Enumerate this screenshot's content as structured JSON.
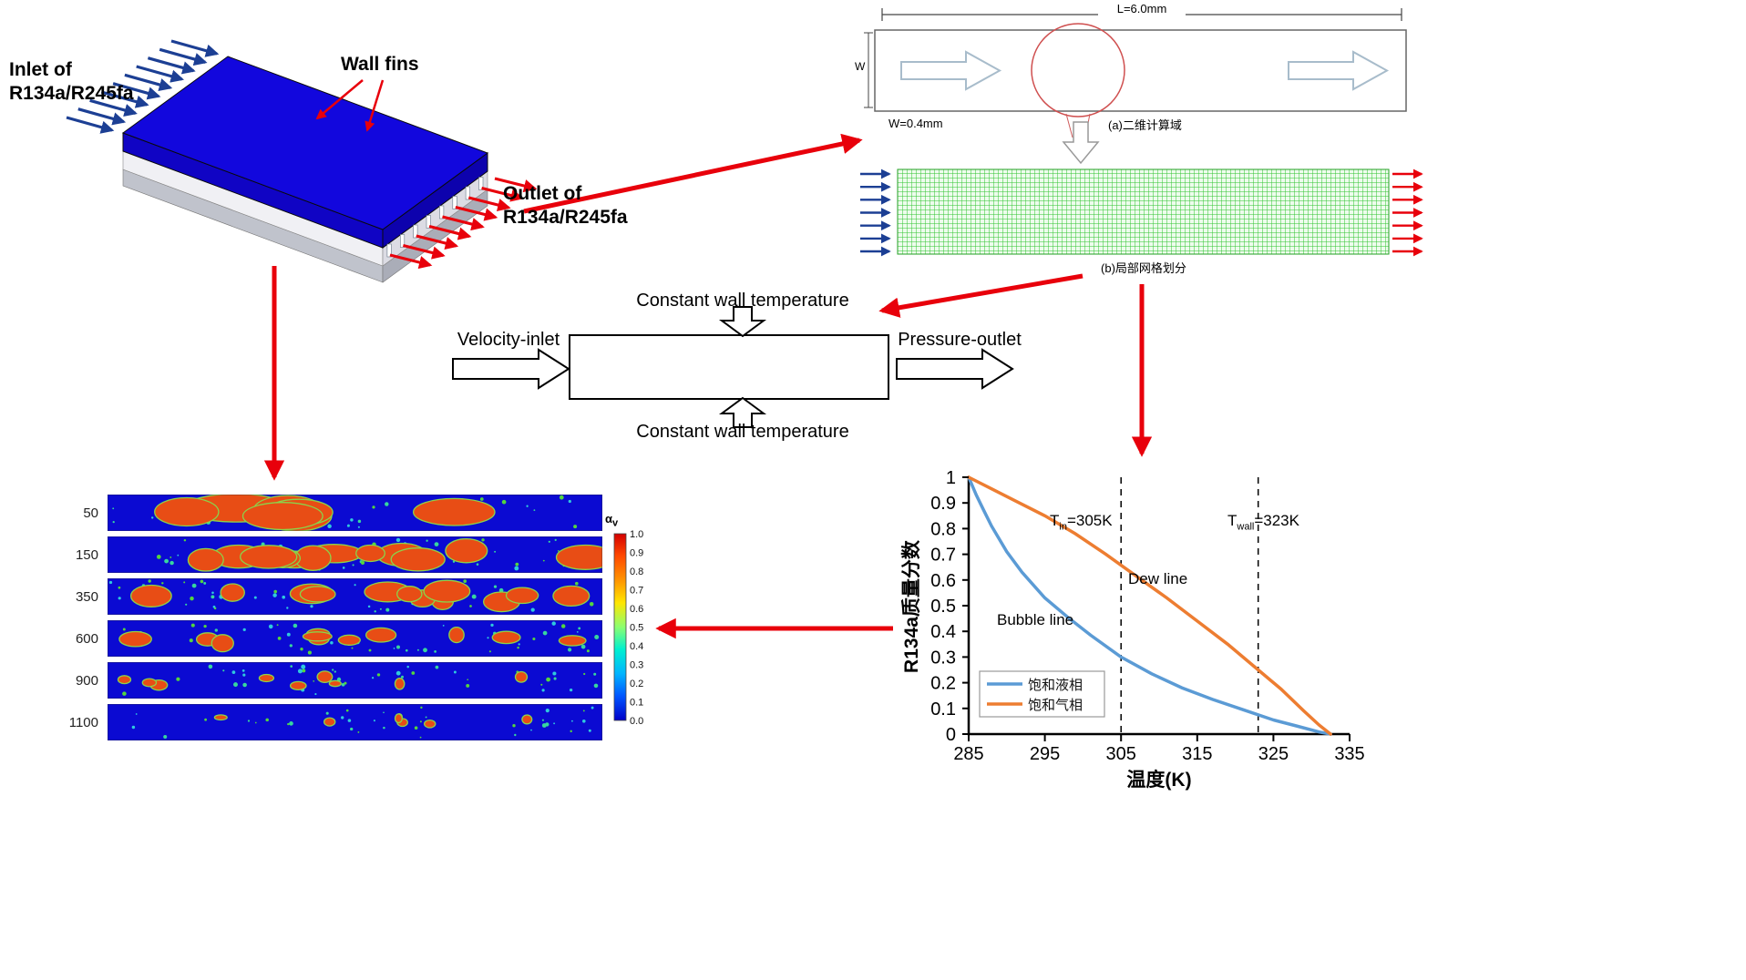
{
  "exchanger": {
    "inlet_label": "Inlet of\nR134a/R245fa",
    "wall_fins_label": "Wall fins",
    "outlet_label": "Outlet of\nR134a/R245fa"
  },
  "domain2d": {
    "length_label": "L=6.0mm",
    "width_letter": "W",
    "width_label": "W=0.4mm",
    "caption": "(a)二维计算域"
  },
  "mesh": {
    "caption": "(b)局部网格划分"
  },
  "boundary": {
    "top_label": "Constant wall temperature",
    "bottom_label": "Constant wall temperature",
    "inlet_label": "Velocity-inlet",
    "outlet_label": "Pressure-outlet"
  },
  "contours": {
    "row_labels": [
      "50",
      "150",
      "350",
      "600",
      "900",
      "1100"
    ],
    "colorbar": {
      "title_base": "α",
      "title_sub": "v",
      "ticks": [
        "1.0",
        "0.9",
        "0.8",
        "0.7",
        "0.6",
        "0.5",
        "0.4",
        "0.3",
        "0.2",
        "0.1",
        "0.0"
      ]
    }
  },
  "chart": {
    "tin": {
      "pre": "T",
      "sub": "in",
      "post": "=305K"
    },
    "twall": {
      "pre": "T",
      "sub": "wall",
      "post": "=323K"
    }
  },
  "chart_data": {
    "type": "line",
    "title": "",
    "xlabel": "温度(K)",
    "ylabel": "R134a质量分数",
    "xlim": [
      285,
      335
    ],
    "ylim": [
      0,
      1
    ],
    "grid": false,
    "legend_position": "lower-left",
    "x_ticks": [
      285,
      295,
      305,
      315,
      325,
      335
    ],
    "y_ticks": [
      0,
      0.1,
      0.2,
      0.3,
      0.4,
      0.5,
      0.6,
      0.7,
      0.8,
      0.9,
      1
    ],
    "vlines": [
      {
        "x": 305,
        "label": "Tin=305K"
      },
      {
        "x": 323,
        "label": "Twall=323K"
      }
    ],
    "series": [
      {
        "name": "饱和液相",
        "annotation": "Bubble line",
        "color": "#5b9bd5",
        "x": [
          285,
          286,
          287,
          288,
          290,
          292,
          295,
          298,
          301,
          305,
          309,
          313,
          317,
          321,
          325,
          328,
          331,
          332.5
        ],
        "y": [
          1.0,
          0.93,
          0.87,
          0.81,
          0.71,
          0.63,
          0.53,
          0.455,
          0.385,
          0.3,
          0.235,
          0.18,
          0.135,
          0.095,
          0.055,
          0.032,
          0.008,
          0.0
        ]
      },
      {
        "name": "饱和气相",
        "annotation": "Dew line",
        "color": "#ed7d31",
        "x": [
          285,
          288,
          291,
          295,
          299,
          303,
          307,
          311,
          315,
          319,
          323,
          326,
          329,
          331,
          332.5
        ],
        "y": [
          1.0,
          0.955,
          0.91,
          0.85,
          0.78,
          0.7,
          0.615,
          0.53,
          0.44,
          0.35,
          0.25,
          0.175,
          0.09,
          0.035,
          0.0
        ]
      }
    ]
  }
}
